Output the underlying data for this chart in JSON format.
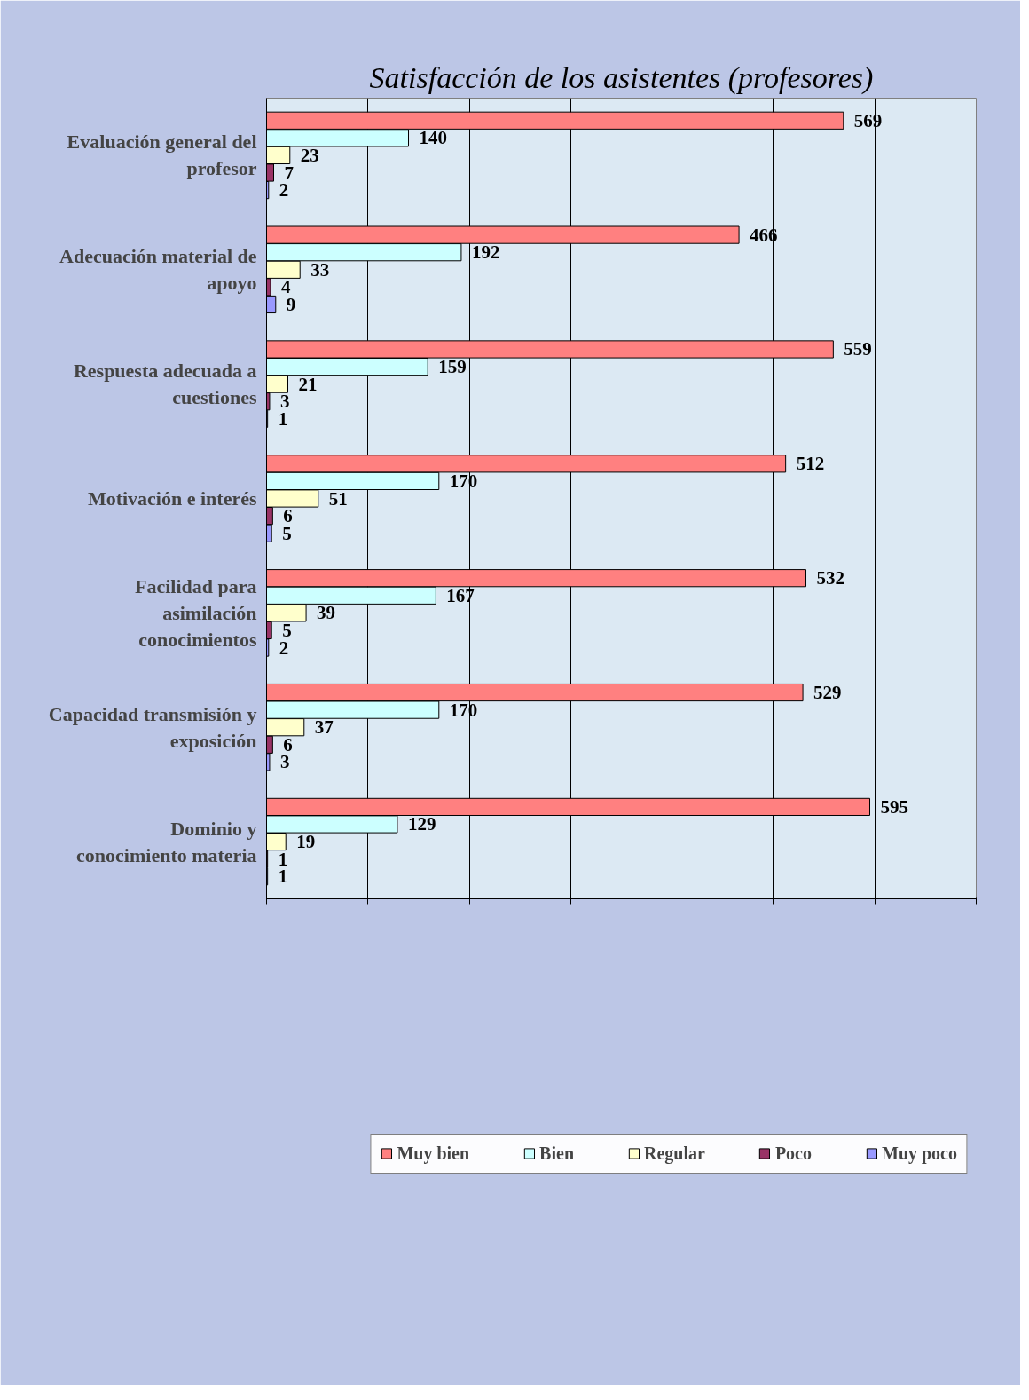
{
  "chart_data": {
    "type": "bar",
    "orientation": "horizontal",
    "title": "Satisfacción de los asistentes (profesores)",
    "categories": [
      "Evaluación general del\nprofesor",
      "Adecuación material de\napoyo",
      "Respuesta adecuada a\ncuestiones",
      "Motivación e interés",
      "Facilidad para\nasimilación\nconocimientos",
      "Capacidad transmisión y\nexposición",
      "Dominio y\nconocimiento materia"
    ],
    "series": [
      {
        "name": "Muy bien",
        "color": "#ff8080",
        "values": [
          569,
          466,
          559,
          512,
          532,
          529,
          595
        ]
      },
      {
        "name": "Bien",
        "color": "#ccffff",
        "values": [
          140,
          192,
          159,
          170,
          167,
          170,
          129
        ]
      },
      {
        "name": "Regular",
        "color": "#ffffcc",
        "values": [
          23,
          33,
          21,
          51,
          39,
          37,
          19
        ]
      },
      {
        "name": "Poco",
        "color": "#993366",
        "values": [
          7,
          4,
          3,
          6,
          5,
          6,
          1
        ]
      },
      {
        "name": "Muy poco",
        "color": "#9999ff",
        "values": [
          2,
          9,
          1,
          5,
          2,
          3,
          1
        ]
      }
    ],
    "xlim": [
      0,
      700
    ],
    "xticks": [
      {
        "value": 0,
        "label": null
      },
      {
        "value": 100,
        "label": null
      },
      {
        "value": 200,
        "label": null
      },
      {
        "value": 300,
        "label": null
      },
      {
        "value": 400,
        "label": null
      },
      {
        "value": 500,
        "label": null
      },
      {
        "value": 600,
        "label": null
      },
      {
        "value": 700,
        "label": null
      }
    ],
    "grid": "x",
    "legend": "bottom",
    "data_labels": true
  }
}
